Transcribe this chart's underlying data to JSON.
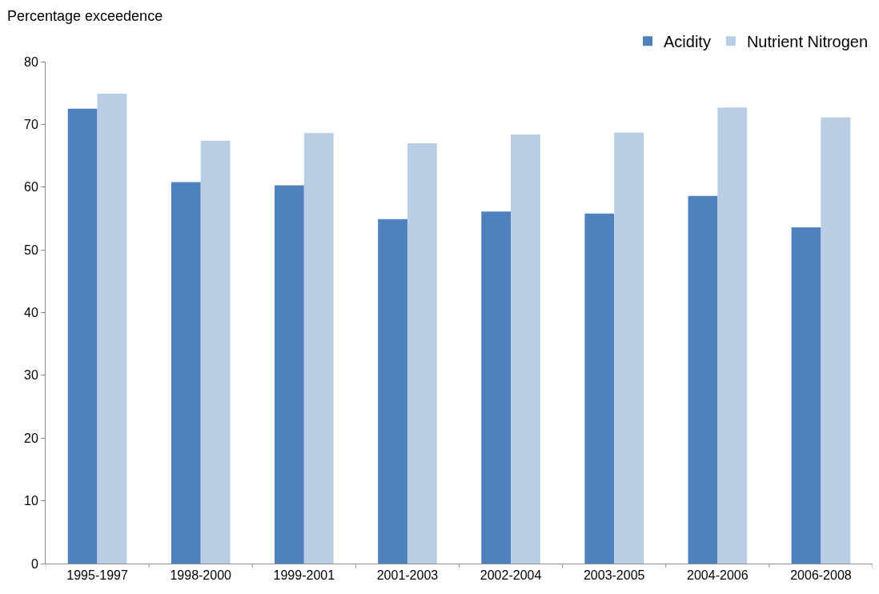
{
  "chart_data": {
    "type": "bar",
    "ylabel": "Percentage exceedence",
    "categories": [
      "1995-1997",
      "1998-2000",
      "1999-2001",
      "2001-2003",
      "2002-2004",
      "2003-2005",
      "2004-2006",
      "2006-2008"
    ],
    "series": [
      {
        "name": "Acidity",
        "color": "#4f81bd",
        "values": [
          72.5,
          60.8,
          60.3,
          54.9,
          56.1,
          55.8,
          58.6,
          53.6
        ]
      },
      {
        "name": "Nutrient Nitrogen",
        "color": "#b9cde5",
        "values": [
          74.9,
          67.4,
          68.6,
          67.0,
          68.4,
          68.7,
          72.7,
          71.1
        ]
      }
    ],
    "ylim": [
      0,
      80
    ],
    "yticks": [
      0,
      10,
      20,
      30,
      40,
      50,
      60,
      70,
      80
    ],
    "grid": false,
    "legend": "top right"
  }
}
